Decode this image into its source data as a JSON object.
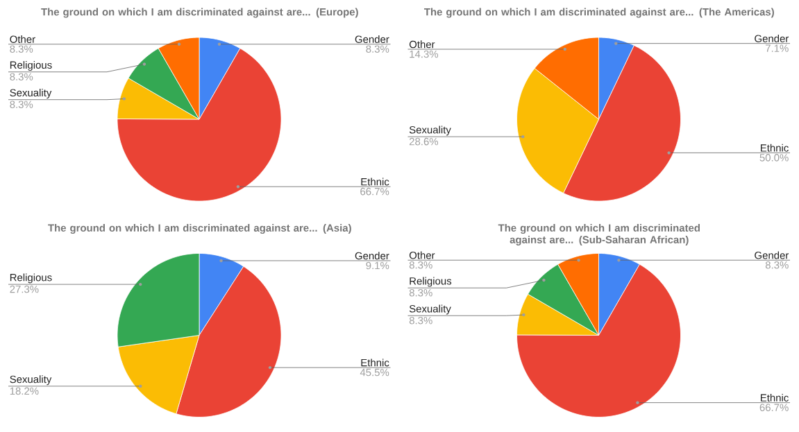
{
  "chart_data": [
    {
      "type": "pie",
      "title": "The ground on which I am discriminated against are... (Europe)",
      "categories": [
        "Gender",
        "Ethnic",
        "Sexuality",
        "Religious",
        "Other"
      ],
      "values": [
        8.3,
        66.7,
        8.3,
        8.3,
        8.3
      ],
      "colors": [
        "#4285f4",
        "#ea4335",
        "#fbbc04",
        "#34a853",
        "#ff6d01"
      ],
      "value_labels": [
        "8.3%",
        "66.7%",
        "8.3%",
        "8.3%",
        "8.3%"
      ]
    },
    {
      "type": "pie",
      "title": "The ground on which I am discriminated against are... (The Americas)",
      "categories": [
        "Gender",
        "Ethnic",
        "Sexuality",
        "Other"
      ],
      "values": [
        7.1,
        50.0,
        28.6,
        14.3
      ],
      "colors": [
        "#4285f4",
        "#ea4335",
        "#fbbc04",
        "#ff6d01"
      ],
      "value_labels": [
        "7.1%",
        "50.0%",
        "28.6%",
        "14.3%"
      ]
    },
    {
      "type": "pie",
      "title": "The ground on which I am discriminated against are... (Asia)",
      "categories": [
        "Gender",
        "Ethnic",
        "Sexuality",
        "Religious"
      ],
      "values": [
        9.1,
        45.5,
        18.2,
        27.3
      ],
      "colors": [
        "#4285f4",
        "#ea4335",
        "#fbbc04",
        "#34a853"
      ],
      "value_labels": [
        "9.1%",
        "45.5%",
        "18.2%",
        "27.3%"
      ]
    },
    {
      "type": "pie",
      "title": "The ground on which I am discriminated against are... (Sub-Saharan African)",
      "categories": [
        "Gender",
        "Ethnic",
        "Sexuality",
        "Religious",
        "Other"
      ],
      "values": [
        8.3,
        66.7,
        8.3,
        8.3,
        8.3
      ],
      "colors": [
        "#4285f4",
        "#ea4335",
        "#fbbc04",
        "#34a853",
        "#ff6d01"
      ],
      "value_labels": [
        "8.3%",
        "66.7%",
        "8.3%",
        "8.3%",
        "8.3%"
      ]
    }
  ]
}
